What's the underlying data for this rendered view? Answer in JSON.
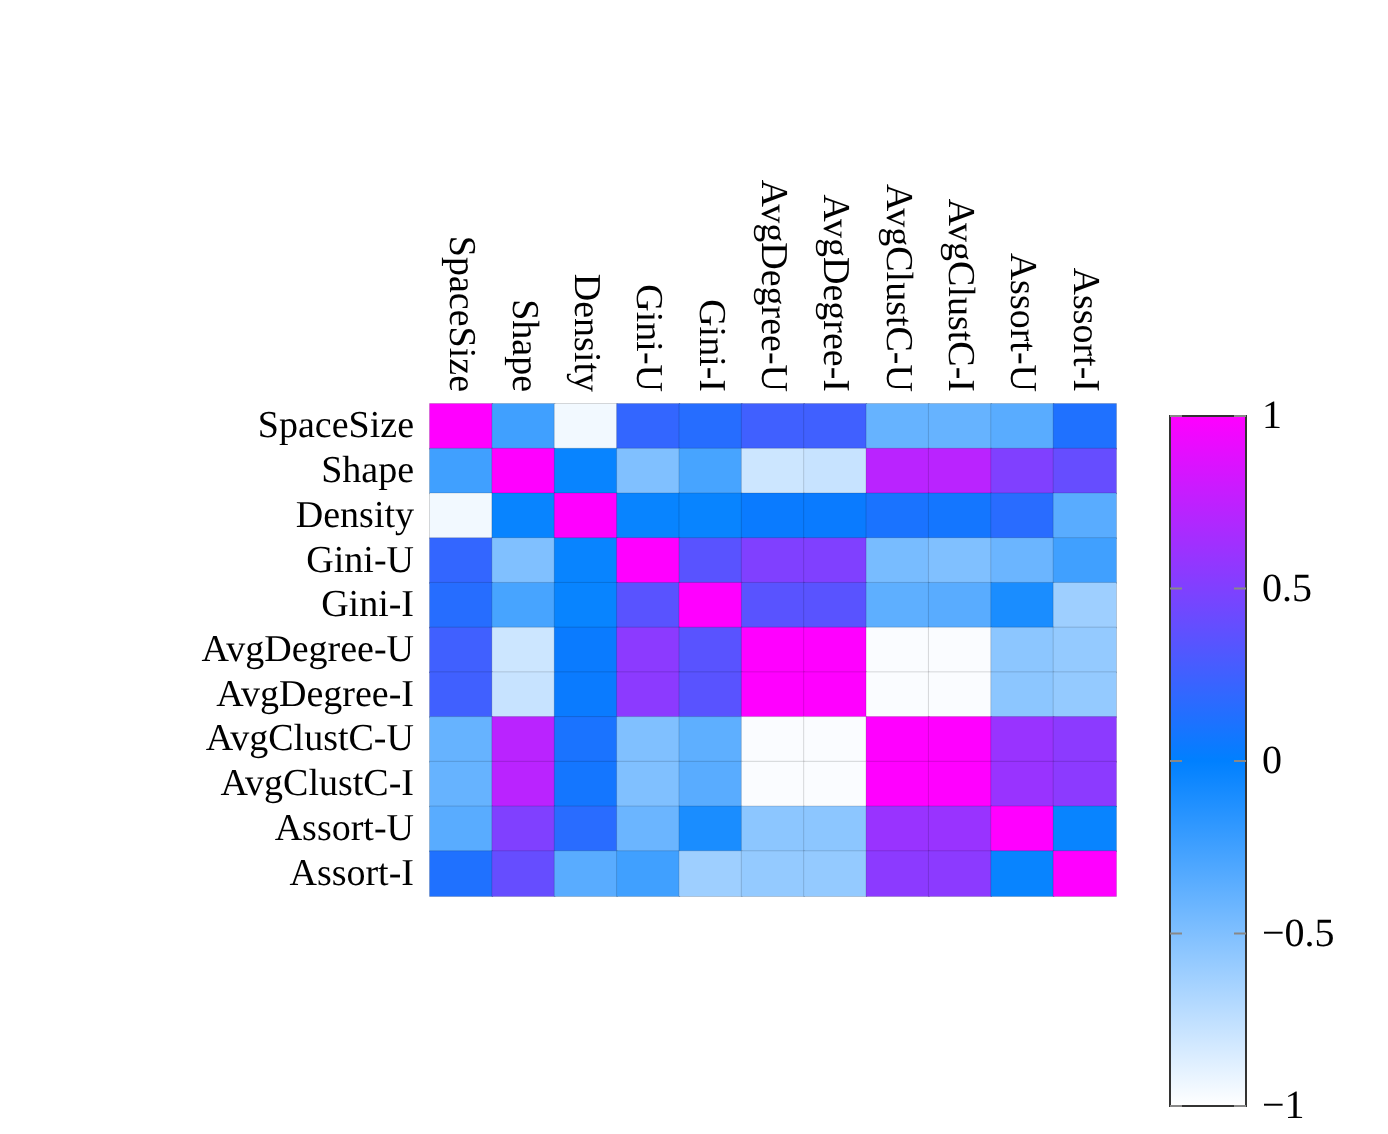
{
  "chart_data": {
    "type": "heatmap",
    "categories": [
      "SpaceSize",
      "Shape",
      "Density",
      "Gini-U",
      "Gini-I",
      "AvgDegree-U",
      "AvgDegree-I",
      "AvgClustC-U",
      "AvgClustC-I",
      "Assort-U",
      "Assort-I"
    ],
    "y_categories": [
      "SpaceSize",
      "Shape",
      "Density",
      "Gini-U",
      "Gini-I",
      "AvgDegree-U",
      "AvgDegree-I",
      "AvgClustC-U",
      "AvgClustC-I",
      "Assort-U",
      "Assort-I"
    ],
    "cells": [
      [
        1,
        -0.25,
        -0.95,
        0.2,
        0.15,
        0.25,
        0.25,
        -0.4,
        -0.4,
        -0.35,
        0.12
      ],
      [
        -0.25,
        1,
        -0.03,
        -0.5,
        -0.28,
        -0.8,
        -0.78,
        0.73,
        0.73,
        0.5,
        0.4
      ],
      [
        -0.95,
        -0.03,
        1,
        -0.03,
        -0.03,
        0.04,
        0.04,
        0.1,
        0.08,
        0.16,
        -0.35
      ],
      [
        0.2,
        -0.5,
        -0.03,
        1,
        0.35,
        0.5,
        0.5,
        -0.47,
        -0.5,
        -0.42,
        -0.25
      ],
      [
        0.15,
        -0.28,
        -0.03,
        0.35,
        1,
        0.35,
        0.35,
        -0.37,
        -0.35,
        -0.1,
        -0.62
      ],
      [
        0.25,
        -0.8,
        0.04,
        0.55,
        0.35,
        1,
        1,
        -0.98,
        -0.98,
        -0.55,
        -0.58
      ],
      [
        0.25,
        -0.78,
        0.04,
        0.55,
        0.35,
        1,
        1,
        -0.98,
        -0.98,
        -0.55,
        -0.58
      ],
      [
        -0.4,
        0.73,
        0.1,
        -0.5,
        -0.37,
        -0.98,
        -0.98,
        1,
        1,
        0.6,
        0.55
      ],
      [
        -0.4,
        0.73,
        0.08,
        -0.5,
        -0.35,
        -0.98,
        -0.98,
        1,
        1,
        0.6,
        0.55
      ],
      [
        -0.35,
        0.5,
        0.16,
        -0.42,
        -0.1,
        -0.55,
        -0.55,
        0.6,
        0.6,
        1,
        -0.03
      ],
      [
        0.12,
        0.4,
        -0.35,
        -0.25,
        -0.62,
        -0.58,
        -0.58,
        0.55,
        0.55,
        -0.03,
        1
      ]
    ],
    "clim": [
      -1,
      1
    ],
    "cticks": [
      {
        "value": -1,
        "label": "−1"
      },
      {
        "value": -0.5,
        "label": "−0.5"
      },
      0,
      0.5,
      1
    ]
  }
}
